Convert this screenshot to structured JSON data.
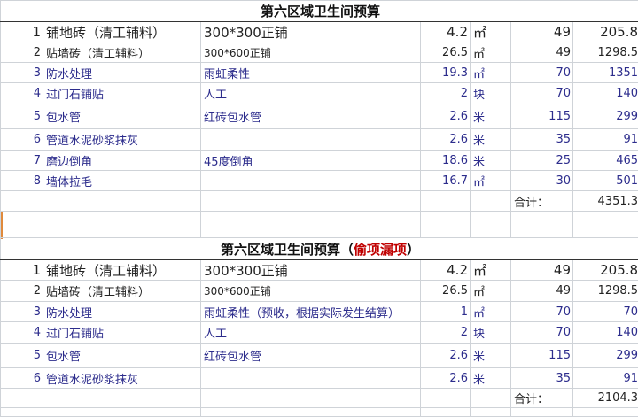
{
  "tables": [
    {
      "title": "第六区域卫生间预算",
      "title_suffix": "",
      "rows": [
        {
          "no": "1",
          "item": "铺地砖（清工辅料）",
          "spec": "300*300正铺",
          "qty": "4.2",
          "unit": "㎡",
          "price": "49",
          "total": "205.8"
        },
        {
          "no": "2",
          "item": "贴墙砖（清工辅料）",
          "spec": "300*600正铺",
          "qty": "26.5",
          "unit": "㎡",
          "price": "49",
          "total": "1298.5"
        },
        {
          "no": "3",
          "item": "防水处理",
          "spec": "雨虹柔性",
          "qty": "19.3",
          "unit": "㎡",
          "price": "70",
          "total": "1351"
        },
        {
          "no": "4",
          "item": "过门石铺贴",
          "spec": "人工",
          "qty": "2",
          "unit": "块",
          "price": "70",
          "total": "140"
        },
        {
          "no": "5",
          "item": "包水管",
          "spec": "红砖包水管",
          "qty": "2.6",
          "unit": "米",
          "price": "115",
          "total": "299"
        },
        {
          "no": "6",
          "item": "管道水泥砂浆抹灰",
          "spec": "",
          "qty": "2.6",
          "unit": "米",
          "price": "35",
          "total": "91"
        },
        {
          "no": "7",
          "item": "磨边倒角",
          "spec": "45度倒角",
          "qty": "18.6",
          "unit": "米",
          "price": "25",
          "total": "465"
        },
        {
          "no": "8",
          "item": "墙体拉毛",
          "spec": "",
          "qty": "16.7",
          "unit": "㎡",
          "price": "30",
          "total": "501"
        }
      ],
      "sum_label": "合计：",
      "sum": "4351.3"
    },
    {
      "title": "第六区域卫生间预算（",
      "title_suffix": "偷项漏项",
      "title_end": "）",
      "rows": [
        {
          "no": "1",
          "item": "铺地砖（清工辅料）",
          "spec": "300*300正铺",
          "qty": "4.2",
          "unit": "㎡",
          "price": "49",
          "total": "205.8"
        },
        {
          "no": "2",
          "item": "贴墙砖（清工辅料）",
          "spec": "300*600正铺",
          "qty": "26.5",
          "unit": "㎡",
          "price": "49",
          "total": "1298.5"
        },
        {
          "no": "3",
          "item": "防水处理",
          "spec": "雨虹柔性（预收，根据实际发生结算）",
          "qty": "1",
          "unit": "㎡",
          "price": "70",
          "total": "70"
        },
        {
          "no": "4",
          "item": "过门石铺贴",
          "spec": "人工",
          "qty": "2",
          "unit": "块",
          "price": "70",
          "total": "140"
        },
        {
          "no": "5",
          "item": "包水管",
          "spec": "红砖包水管",
          "qty": "2.6",
          "unit": "米",
          "price": "115",
          "total": "299"
        },
        {
          "no": "6",
          "item": "管道水泥砂浆抹灰",
          "spec": "",
          "qty": "2.6",
          "unit": "米",
          "price": "35",
          "total": "91"
        }
      ],
      "sum_label": "合计：",
      "sum": "2104.3"
    }
  ]
}
